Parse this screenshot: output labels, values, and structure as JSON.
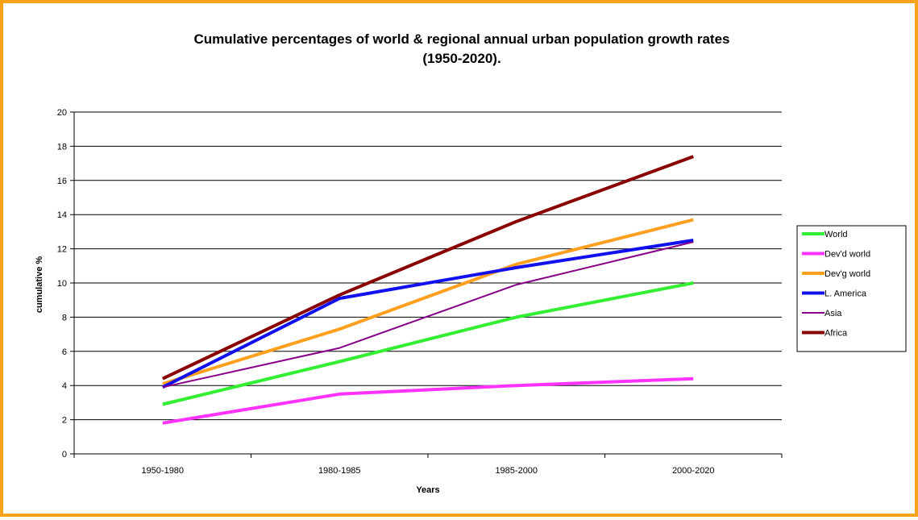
{
  "chart_data": {
    "type": "line",
    "title_line1": "Cumulative percentages of world & regional annual urban population growth rates",
    "title_line2": "(1950-2020).",
    "xlabel": "Years",
    "ylabel": "cumulative %",
    "categories": [
      "1950-1980",
      "1980-1985",
      "1985-2000",
      "2000-2020"
    ],
    "ylim": [
      0,
      20
    ],
    "yticks": [
      0,
      2,
      4,
      6,
      8,
      10,
      12,
      14,
      16,
      18,
      20
    ],
    "grid": true,
    "legend_position": "right",
    "series": [
      {
        "name": "World",
        "color": "#33EE33",
        "width": 4,
        "values": [
          2.9,
          5.4,
          8.0,
          10.0
        ]
      },
      {
        "name": "Dev'd world",
        "color": "#FF33FF",
        "width": 4,
        "values": [
          1.8,
          3.5,
          4.0,
          4.4
        ]
      },
      {
        "name": "Dev'g world",
        "color": "#FFA020",
        "width": 4,
        "values": [
          4.1,
          7.3,
          11.1,
          13.7
        ]
      },
      {
        "name": "L. America",
        "color": "#1111EE",
        "width": 4,
        "values": [
          3.9,
          9.1,
          10.9,
          12.5
        ]
      },
      {
        "name": "Asia",
        "color": "#880088",
        "width": 2,
        "values": [
          3.9,
          6.2,
          9.9,
          12.4
        ]
      },
      {
        "name": "Africa",
        "color": "#880000",
        "width": 4,
        "values": [
          4.4,
          9.3,
          13.6,
          17.4
        ]
      }
    ]
  }
}
